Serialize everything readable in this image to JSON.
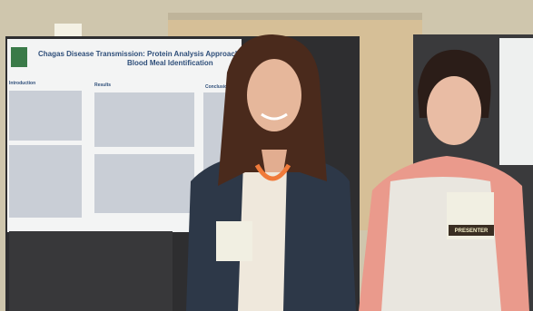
{
  "poster": {
    "title_line_1": "Chagas Disease Transmission: Protein Analysis Approaches for",
    "title_line_2": "Blood Meal Identification",
    "sections": [
      "Introduction",
      "Results",
      "Conclusions"
    ]
  },
  "badge": "PRESENTER"
}
